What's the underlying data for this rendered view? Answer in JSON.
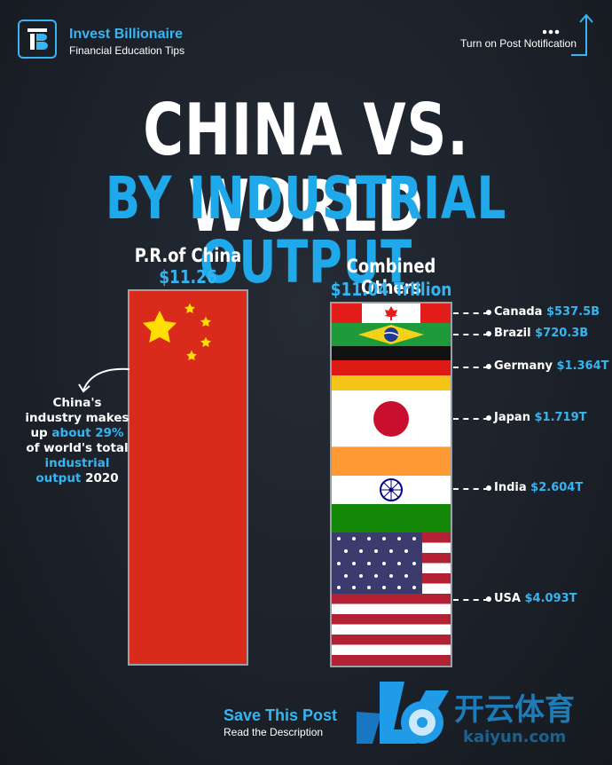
{
  "brand": {
    "name": "Invest Billionaire",
    "tagline": "Financial Education Tips",
    "notification": "Turn on Post Notification"
  },
  "title": {
    "line1": "CHINA VS. WORLD",
    "line2": "BY INDUSTRIAL OUTPUT"
  },
  "chart_data": {
    "type": "bar",
    "categories": [
      "P.R.of China",
      "Combined Others"
    ],
    "values": [
      11.26,
      11.04
    ],
    "value_labels": [
      "$11.26 Trillion",
      "$11.04 Trillion"
    ],
    "stacked_breakdown": {
      "category": "Combined Others",
      "segments": [
        {
          "name": "Canada",
          "value": 537.5,
          "label": "$537.5B"
        },
        {
          "name": "Brazil",
          "value": 720.3,
          "label": "$720.3B"
        },
        {
          "name": "Germany",
          "value": 1364,
          "label": "$1.364T"
        },
        {
          "name": "Japan",
          "value": 1719,
          "label": "$1.719T"
        },
        {
          "name": "India",
          "value": 2604,
          "label": "$2.604T"
        },
        {
          "name": "USA",
          "value": 4093,
          "label": "$4.093T"
        }
      ]
    }
  },
  "annotation": {
    "p1": "China's industry makes up ",
    "p2": "about 29%",
    "p3": " of world's total ",
    "p4": "industrial output",
    "p5": " 2020"
  },
  "footer": {
    "save": "Save This Post",
    "read": "Read the Description"
  },
  "colors": {
    "accent": "#35b5f0",
    "china_red": "#d92b1b",
    "background": "#1c222b"
  },
  "watermark": {
    "text": "开云体育",
    "sub": "kaiyun.com"
  }
}
